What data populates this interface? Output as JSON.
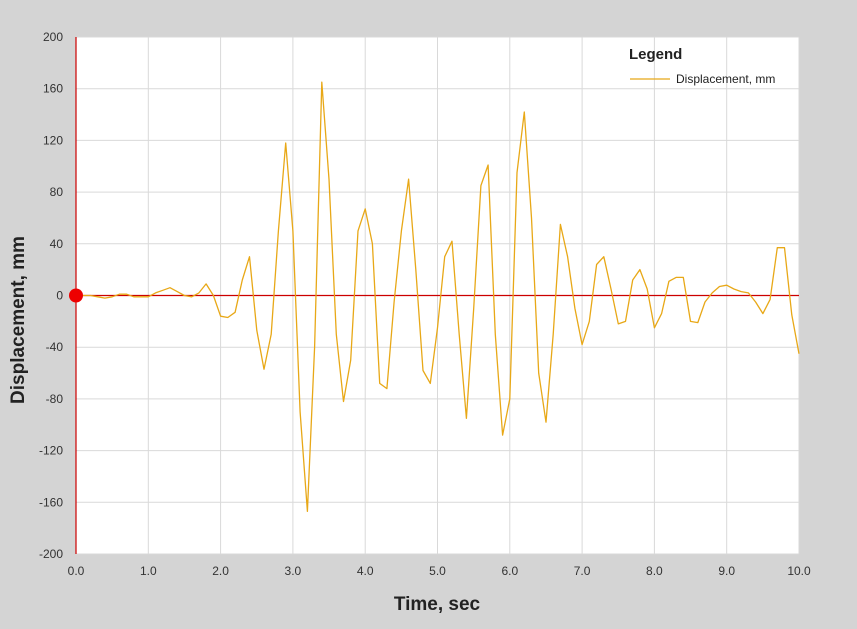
{
  "chart_data": {
    "type": "line",
    "title": "",
    "xlabel": "Time, sec",
    "ylabel": "Displacement, mm",
    "xlim": [
      0,
      10
    ],
    "ylim": [
      -200,
      200
    ],
    "x_ticks": [
      0,
      1,
      2,
      3,
      4,
      5,
      6,
      7,
      8,
      9,
      10
    ],
    "x_tick_labels": [
      "0.0",
      "1.0",
      "2.0",
      "3.0",
      "4.0",
      "5.0",
      "6.0",
      "7.0",
      "8.0",
      "9.0",
      "10.0"
    ],
    "y_ticks": [
      -200,
      -160,
      -120,
      -80,
      -40,
      0,
      40,
      80,
      120,
      160,
      200
    ],
    "y_tick_labels": [
      "-200",
      "-160",
      "-120",
      "-80",
      "-40",
      "0",
      "40",
      "80",
      "120",
      "160",
      "200"
    ],
    "grid": true,
    "legend": {
      "title": "Legend",
      "placement": "top-right",
      "entries": [
        "Displacement, mm"
      ]
    },
    "colors": {
      "series": "#e8a817",
      "axis": "#cc0000",
      "marker": "#ee0000",
      "grid": "#d9d9d9",
      "tick_text": "#333333",
      "label_text": "#222222",
      "frame_bg": "#d4d4d4",
      "plot_bg": "#ffffff"
    },
    "marker_point": {
      "x": 0,
      "y": 0
    },
    "series": [
      {
        "name": "Displacement, mm",
        "x": [
          0,
          0.1,
          0.2,
          0.3,
          0.4,
          0.5,
          0.6,
          0.7,
          0.8,
          0.9,
          1.0,
          1.1,
          1.2,
          1.3,
          1.4,
          1.5,
          1.6,
          1.7,
          1.8,
          1.9,
          2.0,
          2.1,
          2.2,
          2.3,
          2.4,
          2.5,
          2.6,
          2.7,
          2.8,
          2.9,
          3.0,
          3.1,
          3.2,
          3.3,
          3.4,
          3.5,
          3.6,
          3.7,
          3.8,
          3.9,
          4.0,
          4.1,
          4.2,
          4.3,
          4.4,
          4.5,
          4.6,
          4.7,
          4.8,
          4.9,
          5.0,
          5.1,
          5.2,
          5.3,
          5.4,
          5.5,
          5.6,
          5.7,
          5.8,
          5.9,
          6.0,
          6.1,
          6.2,
          6.3,
          6.4,
          6.5,
          6.6,
          6.7,
          6.8,
          6.9,
          7.0,
          7.1,
          7.2,
          7.3,
          7.4,
          7.5,
          7.6,
          7.7,
          7.8,
          7.9,
          8.0,
          8.1,
          8.2,
          8.3,
          8.4,
          8.5,
          8.6,
          8.7,
          8.8,
          8.9,
          9.0,
          9.1,
          9.2,
          9.3,
          9.4,
          9.5,
          9.6,
          9.7,
          9.8,
          9.9,
          10.0
        ],
        "y": [
          0,
          0,
          0,
          -1,
          -2,
          -1,
          1,
          1,
          -1,
          -1,
          -1,
          2,
          4,
          6,
          3,
          0,
          -1,
          2,
          9,
          0,
          -16,
          -17,
          -13,
          12,
          30,
          -27,
          -57,
          -30,
          50,
          118,
          50,
          -90,
          -167,
          -40,
          165,
          90,
          -30,
          -82,
          -50,
          50,
          67,
          40,
          -68,
          -72,
          -5,
          50,
          90,
          20,
          -58,
          -68,
          -25,
          30,
          42,
          -30,
          -95,
          -10,
          85,
          101,
          -30,
          -108,
          -80,
          95,
          142,
          60,
          -60,
          -98,
          -30,
          55,
          30,
          -10,
          -38,
          -20,
          24,
          30,
          5,
          -22,
          -20,
          12,
          20,
          5,
          -25,
          -14,
          11,
          14,
          14,
          -20,
          -21,
          -5,
          2,
          7,
          8,
          5,
          3,
          2,
          -5,
          -14,
          -3,
          37,
          37,
          -15,
          -45
        ]
      }
    ]
  }
}
